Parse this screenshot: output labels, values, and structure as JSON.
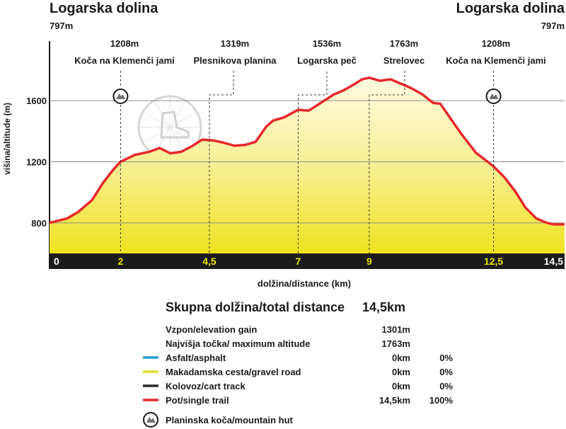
{
  "chart_data": {
    "type": "area",
    "start": {
      "name": "Logarska dolina",
      "altitude": "797m"
    },
    "end": {
      "name": "Logarska dolina",
      "altitude": "797m"
    },
    "xlabel": "dolžina/distance (km)",
    "ylabel": "višina/altitude (m)",
    "xlim": [
      0,
      14.5
    ],
    "ylim": [
      600,
      1990
    ],
    "y_ticks": [
      800,
      1200,
      1600
    ],
    "x_ticks": [
      {
        "value": 0,
        "label": "0",
        "color": "#ffffff"
      },
      {
        "value": 2,
        "label": "2",
        "color": "#f2e600"
      },
      {
        "value": 4.5,
        "label": "4,5",
        "color": "#f2e600"
      },
      {
        "value": 7,
        "label": "7",
        "color": "#f2e600"
      },
      {
        "value": 9,
        "label": "9",
        "color": "#f2e600"
      },
      {
        "value": 12.5,
        "label": "12,5",
        "color": "#f2e600"
      },
      {
        "value": 14.5,
        "label": "14,5",
        "color": "#ffffff"
      }
    ],
    "waypoints": [
      {
        "x": 2,
        "altitude": "1208m",
        "name": "Koča na Klemenči jami",
        "hut": true
      },
      {
        "x": 4.5,
        "altitude": "1319m",
        "name": "Plesnikova planina",
        "hut": false
      },
      {
        "x": 7,
        "altitude": "1536m",
        "name": "Logarska peč",
        "hut": false
      },
      {
        "x": 9,
        "altitude": "1763m",
        "name": "Strelovec",
        "hut": false
      },
      {
        "x": 12.5,
        "altitude": "1208m",
        "name": "Koča na Klemenči jami",
        "hut": true
      }
    ],
    "series": [
      {
        "x": [
          0,
          0.5,
          0.8,
          1.2,
          1.5,
          1.8,
          2,
          2.4,
          2.8,
          3.1,
          3.4,
          3.7,
          4.0,
          4.3,
          4.6,
          4.9,
          5.2,
          5.5,
          5.8,
          6.1,
          6.3,
          6.6,
          7,
          7.3,
          7.6,
          8,
          8.3,
          8.6,
          8.8,
          9,
          9.3,
          9.6,
          9.9,
          10.2,
          10.5,
          10.8,
          11,
          11.3,
          11.6,
          12,
          12.5,
          12.8,
          13.1,
          13.4,
          13.7,
          14,
          14.2,
          14.5
        ],
        "y": [
          800,
          830,
          870,
          950,
          1060,
          1150,
          1200,
          1245,
          1265,
          1290,
          1255,
          1265,
          1300,
          1345,
          1340,
          1325,
          1305,
          1310,
          1330,
          1430,
          1470,
          1490,
          1540,
          1535,
          1580,
          1640,
          1670,
          1710,
          1740,
          1750,
          1730,
          1740,
          1710,
          1680,
          1640,
          1585,
          1580,
          1480,
          1380,
          1260,
          1170,
          1100,
          1010,
          900,
          830,
          800,
          790,
          790
        ]
      }
    ],
    "watermark": "skrite poti"
  },
  "summary": {
    "total_label": "Skupna dolžina/total distance",
    "total_value": "14,5km",
    "rows": [
      {
        "label": "Vzpon/elevation gain",
        "value": "1301m",
        "percent": ""
      },
      {
        "label": "Najvišja točka/ maximum altitude",
        "value": "1763m",
        "percent": ""
      }
    ]
  },
  "legend": {
    "items": [
      {
        "color": "#1e9bd7",
        "label": "Asfalt/asphalt",
        "value": "0km",
        "percent": "0%"
      },
      {
        "color": "#e6dd2e",
        "label": "Makadamska cesta/gravel road",
        "value": "0km",
        "percent": "0%"
      },
      {
        "color": "#2b2b2b",
        "label": "Kolovoz/cart track",
        "value": "0km",
        "percent": "0%"
      },
      {
        "color": "#e6282b",
        "label": "Pot/single trail",
        "value": "14,5km",
        "percent": "100%"
      }
    ],
    "hut_label": "Planinska koča/mountain hut"
  },
  "colors": {
    "trail": "#e6282b",
    "fill_top": "#fdfbe2",
    "fill_bottom": "#efe21f",
    "axis_band": "#1b1b1b",
    "grid": "#8c8c8c",
    "tick_highlight": "#f2e600"
  }
}
